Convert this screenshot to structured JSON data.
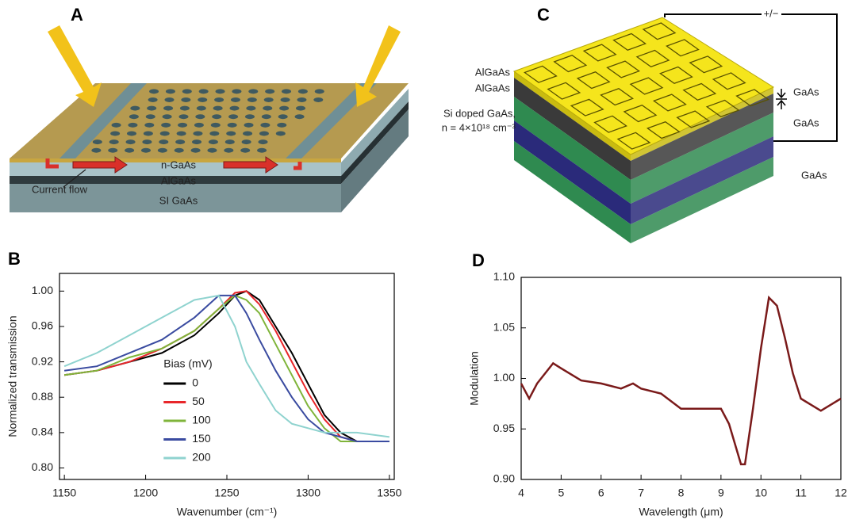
{
  "panel_labels": [
    "A",
    "B",
    "C",
    "D"
  ],
  "diagram_a": {
    "labels": [
      "n-GaAs",
      "Current flow",
      "AlGaAs",
      "SI GaAs"
    ]
  },
  "diagram_c": {
    "supply_label": "+/−",
    "left_labels": [
      "AlGaAs",
      "AlGaAs",
      "Si doped GaAs,",
      "n = 4×10¹⁸ cm⁻³"
    ],
    "right_labels": [
      "GaAs",
      "GaAs",
      "GaAs"
    ]
  },
  "chart_data": [
    {
      "type": "line",
      "x_label": "Wavenumber (cm⁻¹)",
      "y_label": "Normalized transmission",
      "x": [
        1150,
        1170,
        1190,
        1210,
        1230,
        1245,
        1255,
        1262,
        1270,
        1280,
        1290,
        1300,
        1310,
        1320,
        1330,
        1350
      ],
      "series": [
        {
          "name": "0",
          "color": "#000000",
          "values": [
            0.905,
            0.91,
            0.92,
            0.93,
            0.95,
            0.975,
            0.995,
            1.0,
            0.99,
            0.96,
            0.93,
            0.895,
            0.86,
            0.84,
            0.83,
            0.83
          ]
        },
        {
          "name": "50",
          "color": "#e8262a",
          "values": [
            0.905,
            0.91,
            0.92,
            0.935,
            0.955,
            0.98,
            0.998,
            1.0,
            0.985,
            0.955,
            0.92,
            0.885,
            0.855,
            0.835,
            0.83,
            0.83
          ]
        },
        {
          "name": "100",
          "color": "#7fb43a",
          "values": [
            0.905,
            0.91,
            0.925,
            0.935,
            0.955,
            0.98,
            0.995,
            0.99,
            0.975,
            0.94,
            0.905,
            0.87,
            0.845,
            0.83,
            0.83,
            0.83
          ]
        },
        {
          "name": "150",
          "color": "#3a4ba0",
          "values": [
            0.91,
            0.915,
            0.93,
            0.945,
            0.97,
            0.995,
            0.995,
            0.975,
            0.945,
            0.91,
            0.88,
            0.855,
            0.84,
            0.835,
            0.83,
            0.83
          ]
        },
        {
          "name": "200",
          "color": "#8fd3cf",
          "values": [
            0.915,
            0.93,
            0.95,
            0.97,
            0.99,
            0.995,
            0.96,
            0.92,
            0.895,
            0.865,
            0.85,
            0.845,
            0.84,
            0.84,
            0.84,
            0.835
          ]
        }
      ],
      "xlim": [
        1147,
        1353
      ],
      "ylim": [
        0.787,
        1.02
      ],
      "xticks": [
        1150,
        1200,
        1250,
        1300,
        1350
      ],
      "yticks": [
        {
          "value": 0.8,
          "label": "0.80"
        },
        0.84,
        0.88,
        0.92,
        0.96,
        {
          "value": 1.0,
          "label": "1.00"
        }
      ],
      "legend_title": "Bias (mV)",
      "legend": "center",
      "grid": false
    },
    {
      "type": "line",
      "x_label": "Wavelength (μm)",
      "y_label": "Modulation",
      "x": [
        4,
        4.2,
        4.4,
        4.6,
        4.8,
        5,
        5.5,
        6,
        6.5,
        6.8,
        7,
        7.5,
        8,
        8.5,
        9,
        9.2,
        9.5,
        9.6,
        9.8,
        10,
        10.2,
        10.4,
        10.6,
        10.8,
        11,
        11.5,
        12
      ],
      "values": [
        0.995,
        0.98,
        0.995,
        1.005,
        1.015,
        1.01,
        0.998,
        0.995,
        0.99,
        0.995,
        0.99,
        0.985,
        0.97,
        0.97,
        0.97,
        0.955,
        0.915,
        0.915,
        0.97,
        1.03,
        1.08,
        1.072,
        1.04,
        1.005,
        0.98,
        0.968,
        0.98
      ],
      "color": "#7a1a1a",
      "xlim": [
        4,
        12
      ],
      "ylim": [
        0.9,
        1.1
      ],
      "xticks": [
        4,
        5,
        6,
        7,
        8,
        9,
        10,
        11,
        12
      ],
      "yticks": [
        {
          "value": 0.9,
          "label": "0.90"
        },
        {
          "value": 0.95,
          "label": "0.95"
        },
        {
          "value": 1.0,
          "label": "1.00"
        },
        {
          "value": 1.05,
          "label": "1.05"
        },
        {
          "value": 1.1,
          "label": "1.10"
        }
      ],
      "grid": false
    }
  ]
}
